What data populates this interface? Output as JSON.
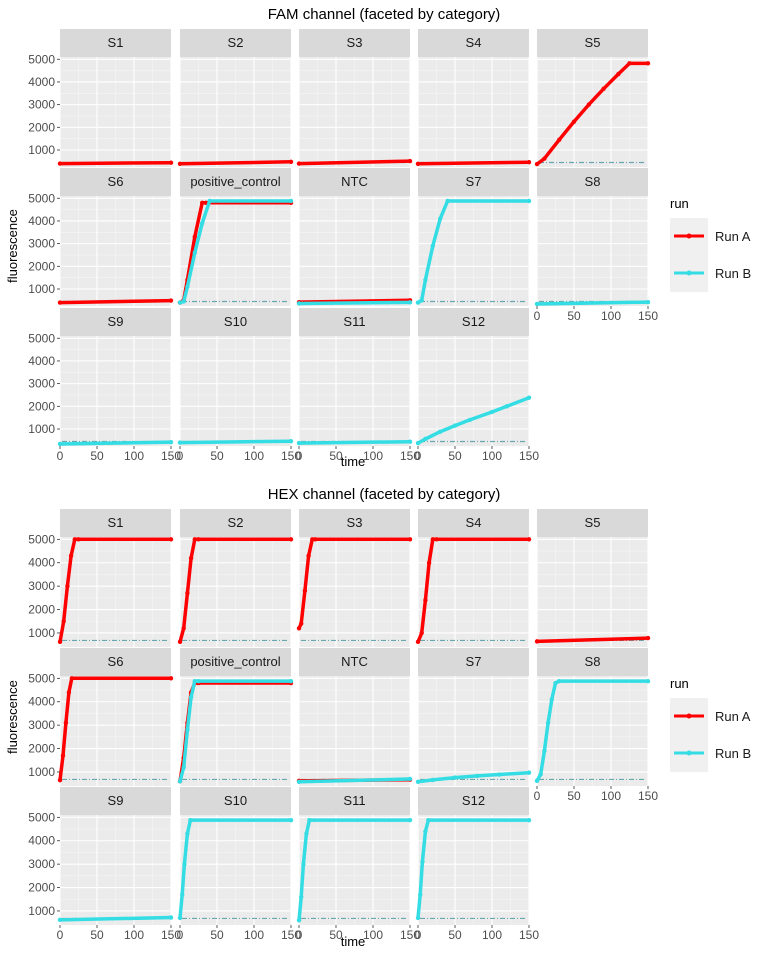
{
  "chart_data": [
    {
      "type": "line",
      "title": "FAM channel (faceted by category)",
      "xlabel": "time",
      "ylabel": "fluorescence",
      "xlim": [
        0,
        150
      ],
      "ylim": [
        250,
        5100
      ],
      "x_ticks": [
        0,
        50,
        100,
        150
      ],
      "y_ticks": [
        1000,
        2000,
        3000,
        4000,
        5000
      ],
      "grid": true,
      "facet_layout": "wrap, 5 columns",
      "legend": {
        "title": "run",
        "position": "right",
        "entries": [
          {
            "name": "Run A",
            "color": "#ff0000"
          },
          {
            "name": "Run B",
            "color": "#33dde3"
          }
        ]
      },
      "panels": [
        {
          "label": "S1",
          "threshold": 450,
          "series": [
            {
              "name": "Run A",
              "x": [
                0,
                150
              ],
              "y": [
                400,
                440
              ]
            }
          ]
        },
        {
          "label": "S2",
          "threshold": 450,
          "series": [
            {
              "name": "Run A",
              "x": [
                0,
                150
              ],
              "y": [
                390,
                480
              ]
            }
          ]
        },
        {
          "label": "S3",
          "threshold": 450,
          "series": [
            {
              "name": "Run A",
              "x": [
                0,
                150
              ],
              "y": [
                400,
                510
              ]
            }
          ]
        },
        {
          "label": "S4",
          "threshold": 450,
          "series": [
            {
              "name": "Run A",
              "x": [
                0,
                150
              ],
              "y": [
                390,
                460
              ]
            }
          ]
        },
        {
          "label": "S5",
          "threshold": 450,
          "series": [
            {
              "name": "Run A",
              "x": [
                0,
                10,
                30,
                50,
                70,
                90,
                110,
                125,
                150
              ],
              "y": [
                380,
                620,
                1450,
                2250,
                3000,
                3700,
                4350,
                4820,
                4820
              ]
            }
          ]
        },
        {
          "label": "S6",
          "threshold": 450,
          "series": [
            {
              "name": "Run A",
              "x": [
                0,
                150
              ],
              "y": [
                400,
                490
              ]
            }
          ]
        },
        {
          "label": "positive_control",
          "threshold": 450,
          "series": [
            {
              "name": "Run A",
              "x": [
                0,
                5,
                10,
                20,
                30,
                35,
                150
              ],
              "y": [
                400,
                500,
                1400,
                3300,
                4800,
                4800,
                4800
              ]
            },
            {
              "name": "Run B",
              "x": [
                0,
                5,
                10,
                20,
                30,
                40,
                150
              ],
              "y": [
                400,
                450,
                1100,
                2600,
                3900,
                4880,
                4880
              ]
            }
          ]
        },
        {
          "label": "NTC",
          "threshold": 450,
          "series": [
            {
              "name": "Run A",
              "x": [
                0,
                150
              ],
              "y": [
                420,
                500
              ]
            },
            {
              "name": "Run B",
              "x": [
                0,
                150
              ],
              "y": [
                360,
                410
              ]
            }
          ]
        },
        {
          "label": "S7",
          "threshold": 450,
          "series": [
            {
              "name": "Run B",
              "x": [
                0,
                5,
                10,
                20,
                30,
                40,
                150
              ],
              "y": [
                400,
                500,
                1400,
                2900,
                4100,
                4880,
                4880
              ]
            }
          ]
        },
        {
          "label": "S8",
          "threshold": 450,
          "series": [
            {
              "name": "Run B",
              "x": [
                0,
                150
              ],
              "y": [
                340,
                420
              ]
            }
          ]
        },
        {
          "label": "S9",
          "threshold": 450,
          "series": [
            {
              "name": "Run B",
              "x": [
                0,
                150
              ],
              "y": [
                340,
                420
              ]
            }
          ]
        },
        {
          "label": "S10",
          "threshold": 450,
          "series": [
            {
              "name": "Run B",
              "x": [
                0,
                150
              ],
              "y": [
                400,
                460
              ]
            }
          ]
        },
        {
          "label": "S11",
          "threshold": 450,
          "series": [
            {
              "name": "Run B",
              "x": [
                0,
                150
              ],
              "y": [
                380,
                440
              ]
            }
          ]
        },
        {
          "label": "S12",
          "threshold": 450,
          "series": [
            {
              "name": "Run B",
              "x": [
                0,
                10,
                30,
                50,
                70,
                100,
                120,
                150
              ],
              "y": [
                380,
                560,
                880,
                1150,
                1400,
                1750,
                2000,
                2380
              ]
            }
          ]
        }
      ]
    },
    {
      "type": "line",
      "title": "HEX channel (faceted by category)",
      "xlabel": "time",
      "ylabel": "fluorescence",
      "xlim": [
        0,
        150
      ],
      "ylim": [
        400,
        5100
      ],
      "x_ticks": [
        0,
        50,
        100,
        150
      ],
      "y_ticks": [
        1000,
        2000,
        3000,
        4000,
        5000
      ],
      "grid": true,
      "facet_layout": "wrap, 5 columns",
      "legend": {
        "title": "run",
        "position": "right",
        "entries": [
          {
            "name": "Run A",
            "color": "#ff0000"
          },
          {
            "name": "Run B",
            "color": "#33dde3"
          }
        ]
      },
      "panels": [
        {
          "label": "S1",
          "threshold": 680,
          "series": [
            {
              "name": "Run A",
              "x": [
                0,
                5,
                10,
                15,
                20,
                25,
                150
              ],
              "y": [
                620,
                1500,
                3000,
                4300,
                5000,
                5000,
                5000
              ]
            }
          ]
        },
        {
          "label": "S2",
          "threshold": 680,
          "series": [
            {
              "name": "Run A",
              "x": [
                0,
                5,
                10,
                15,
                20,
                25,
                150
              ],
              "y": [
                620,
                1200,
                2700,
                4200,
                5000,
                5000,
                5000
              ]
            }
          ]
        },
        {
          "label": "S3",
          "threshold": 680,
          "series": [
            {
              "name": "Run A",
              "x": [
                0,
                3,
                8,
                13,
                18,
                22,
                150
              ],
              "y": [
                1200,
                1400,
                2800,
                4300,
                5000,
                5000,
                5000
              ]
            }
          ]
        },
        {
          "label": "S4",
          "threshold": 680,
          "series": [
            {
              "name": "Run A",
              "x": [
                0,
                5,
                10,
                15,
                20,
                25,
                150
              ],
              "y": [
                620,
                1000,
                2400,
                4000,
                5000,
                5000,
                5000
              ]
            }
          ]
        },
        {
          "label": "S5",
          "threshold": 680,
          "series": [
            {
              "name": "Run A",
              "x": [
                0,
                150
              ],
              "y": [
                640,
                780
              ]
            }
          ]
        },
        {
          "label": "S6",
          "threshold": 680,
          "series": [
            {
              "name": "Run A",
              "x": [
                0,
                4,
                8,
                12,
                16,
                150
              ],
              "y": [
                650,
                1700,
                3100,
                4400,
                5000,
                5000
              ]
            }
          ]
        },
        {
          "label": "positive_control",
          "threshold": 680,
          "series": [
            {
              "name": "Run A",
              "x": [
                0,
                5,
                10,
                15,
                20,
                25,
                150
              ],
              "y": [
                600,
                1600,
                3100,
                4400,
                4800,
                4800,
                4800
              ]
            },
            {
              "name": "Run B",
              "x": [
                0,
                5,
                10,
                15,
                20,
                25,
                150
              ],
              "y": [
                600,
                1200,
                2800,
                4200,
                4880,
                4880,
                4880
              ]
            }
          ]
        },
        {
          "label": "NTC",
          "threshold": 680,
          "series": [
            {
              "name": "Run A",
              "x": [
                0,
                150
              ],
              "y": [
                620,
                670
              ]
            },
            {
              "name": "Run B",
              "x": [
                0,
                150
              ],
              "y": [
                580,
                700
              ]
            }
          ]
        },
        {
          "label": "S7",
          "threshold": 680,
          "series": [
            {
              "name": "Run B",
              "x": [
                0,
                20,
                50,
                80,
                110,
                150
              ],
              "y": [
                580,
                660,
                760,
                830,
                890,
                970
              ]
            }
          ]
        },
        {
          "label": "S8",
          "threshold": 680,
          "series": [
            {
              "name": "Run B",
              "x": [
                0,
                5,
                10,
                15,
                20,
                25,
                30,
                150
              ],
              "y": [
                620,
                900,
                1900,
                3100,
                4100,
                4800,
                4880,
                4880
              ]
            }
          ]
        },
        {
          "label": "S9",
          "threshold": 680,
          "series": [
            {
              "name": "Run B",
              "x": [
                0,
                150
              ],
              "y": [
                620,
                720
              ]
            }
          ]
        },
        {
          "label": "S10",
          "threshold": 680,
          "series": [
            {
              "name": "Run B",
              "x": [
                0,
                3,
                6,
                10,
                14,
                150
              ],
              "y": [
                700,
                1700,
                3000,
                4300,
                4880,
                4880
              ]
            }
          ]
        },
        {
          "label": "S11",
          "threshold": 680,
          "series": [
            {
              "name": "Run B",
              "x": [
                0,
                3,
                6,
                10,
                14,
                150
              ],
              "y": [
                600,
                1600,
                3000,
                4300,
                4880,
                4880
              ]
            }
          ]
        },
        {
          "label": "S12",
          "threshold": 680,
          "series": [
            {
              "name": "Run B",
              "x": [
                0,
                3,
                6,
                10,
                14,
                150
              ],
              "y": [
                700,
                1700,
                3100,
                4400,
                4880,
                4880
              ]
            }
          ]
        }
      ]
    }
  ]
}
